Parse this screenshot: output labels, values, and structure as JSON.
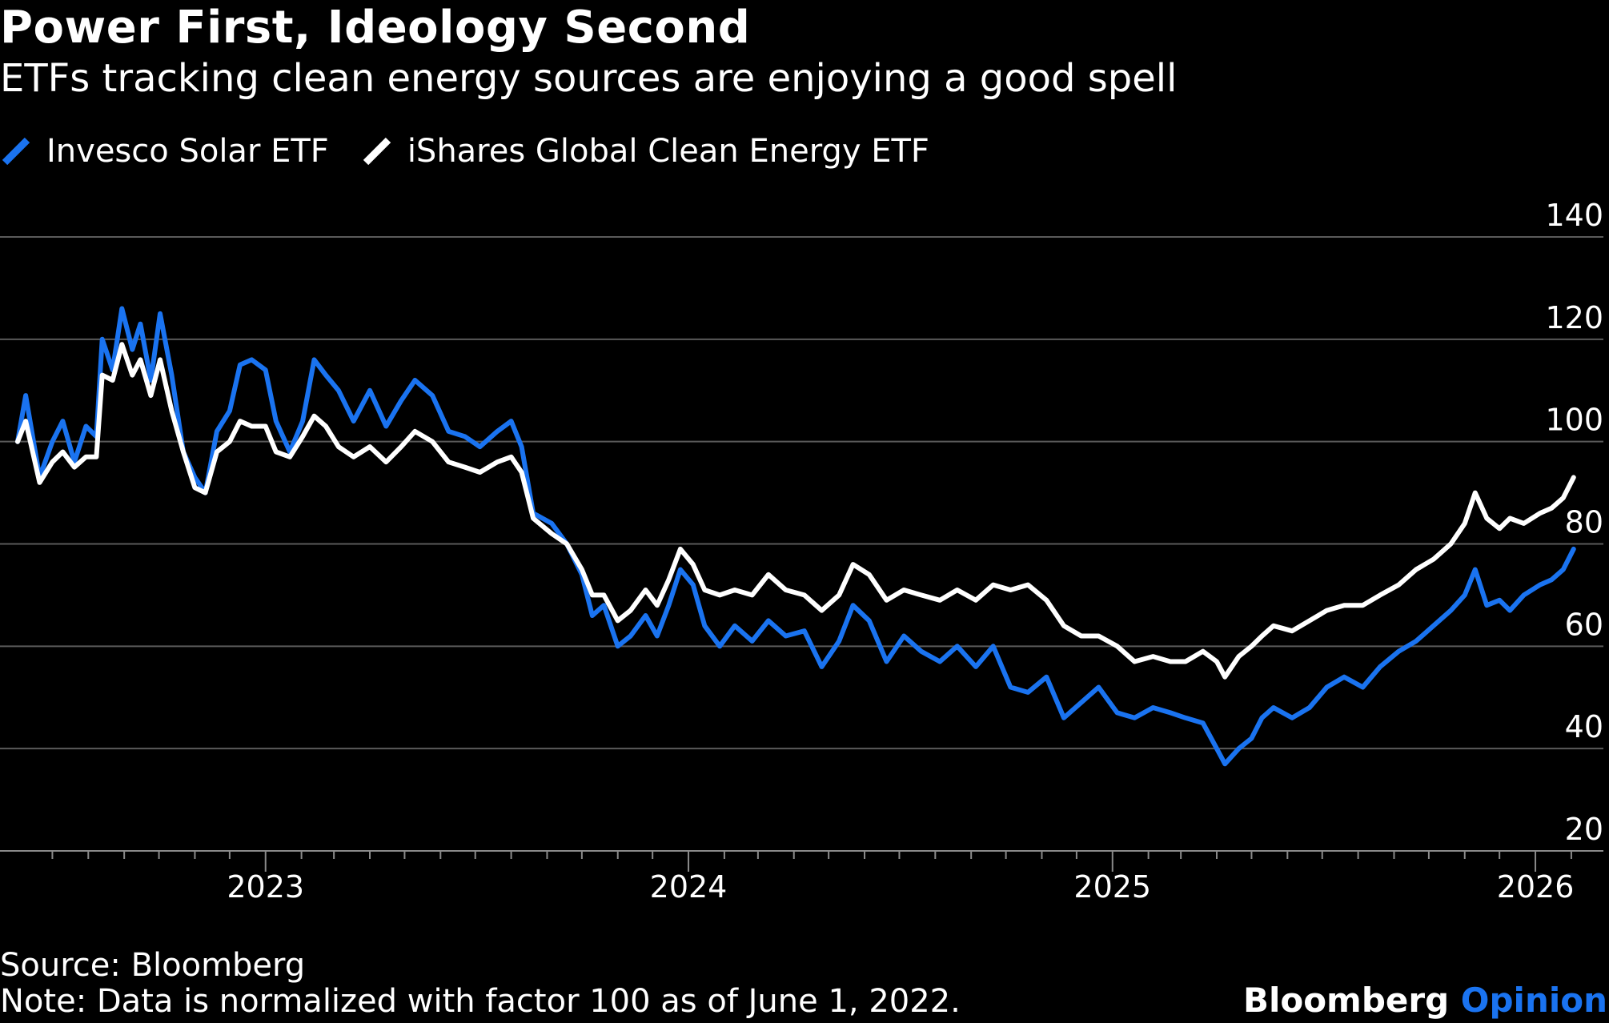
{
  "header": {
    "title": "Power First, Ideology Second",
    "subtitle": "ETFs tracking clean energy sources are enjoying a good spell"
  },
  "footer": {
    "source": "Source: Bloomberg",
    "note": "Note: Data is normalized with factor 100 as of June 1, 2022.",
    "brand_name": "Bloomberg",
    "brand_suffix": "Opinion"
  },
  "colors": {
    "background": "#000000",
    "solar": "#1a73f0",
    "clean_energy": "#ffffff",
    "gridline": "#5a5a5a",
    "brand_accent": "#1a73f0"
  },
  "chart_data": {
    "type": "line",
    "title": "Power First, Ideology Second",
    "subtitle": "ETFs tracking clean energy sources are enjoying a good spell",
    "ylim": [
      20,
      140
    ],
    "yticks": [
      20,
      40,
      60,
      80,
      100,
      120,
      140
    ],
    "y_axis_side": "right",
    "xlim": [
      "2022-06-01",
      "2026-02-28"
    ],
    "xticks": [
      {
        "date": "2023-01-01",
        "label": "2023"
      },
      {
        "date": "2024-01-01",
        "label": "2024"
      },
      {
        "date": "2025-01-01",
        "label": "2025"
      },
      {
        "date": "2026-01-01",
        "label": "2026"
      }
    ],
    "grid": true,
    "legend_position": "top-left",
    "series": [
      {
        "name": "Invesco Solar ETF",
        "color": "#1a73f0",
        "points": [
          [
            "2022-06-01",
            100
          ],
          [
            "2022-06-08",
            109
          ],
          [
            "2022-06-20",
            93
          ],
          [
            "2022-07-01",
            100
          ],
          [
            "2022-07-10",
            104
          ],
          [
            "2022-07-20",
            96
          ],
          [
            "2022-07-30",
            103
          ],
          [
            "2022-08-08",
            101
          ],
          [
            "2022-08-13",
            120
          ],
          [
            "2022-08-22",
            114
          ],
          [
            "2022-08-30",
            126
          ],
          [
            "2022-09-08",
            118
          ],
          [
            "2022-09-15",
            123
          ],
          [
            "2022-09-24",
            112
          ],
          [
            "2022-10-02",
            125
          ],
          [
            "2022-10-12",
            113
          ],
          [
            "2022-10-22",
            98
          ],
          [
            "2022-11-01",
            93
          ],
          [
            "2022-11-10",
            90
          ],
          [
            "2022-11-20",
            102
          ],
          [
            "2022-12-01",
            106
          ],
          [
            "2022-12-10",
            115
          ],
          [
            "2022-12-20",
            116
          ],
          [
            "2023-01-01",
            114
          ],
          [
            "2023-01-10",
            104
          ],
          [
            "2023-01-22",
            98
          ],
          [
            "2023-02-02",
            104
          ],
          [
            "2023-02-12",
            116
          ],
          [
            "2023-02-22",
            113
          ],
          [
            "2023-03-05",
            110
          ],
          [
            "2023-03-18",
            104
          ],
          [
            "2023-04-01",
            110
          ],
          [
            "2023-04-15",
            103
          ],
          [
            "2023-04-28",
            108
          ],
          [
            "2023-05-10",
            112
          ],
          [
            "2023-05-25",
            109
          ],
          [
            "2023-06-08",
            102
          ],
          [
            "2023-06-22",
            101
          ],
          [
            "2023-07-05",
            99
          ],
          [
            "2023-07-20",
            102
          ],
          [
            "2023-08-01",
            104
          ],
          [
            "2023-08-10",
            99
          ],
          [
            "2023-08-20",
            86
          ],
          [
            "2023-09-05",
            84
          ],
          [
            "2023-09-18",
            80
          ],
          [
            "2023-10-01",
            74
          ],
          [
            "2023-10-10",
            66
          ],
          [
            "2023-10-20",
            68
          ],
          [
            "2023-11-01",
            60
          ],
          [
            "2023-11-12",
            62
          ],
          [
            "2023-11-25",
            66
          ],
          [
            "2023-12-05",
            62
          ],
          [
            "2023-12-15",
            68
          ],
          [
            "2023-12-25",
            75
          ],
          [
            "2024-01-05",
            72
          ],
          [
            "2024-01-15",
            64
          ],
          [
            "2024-01-28",
            60
          ],
          [
            "2024-02-10",
            64
          ],
          [
            "2024-02-25",
            61
          ],
          [
            "2024-03-10",
            65
          ],
          [
            "2024-03-25",
            62
          ],
          [
            "2024-04-10",
            63
          ],
          [
            "2024-04-25",
            56
          ],
          [
            "2024-05-10",
            61
          ],
          [
            "2024-05-22",
            68
          ],
          [
            "2024-06-05",
            65
          ],
          [
            "2024-06-20",
            57
          ],
          [
            "2024-07-05",
            62
          ],
          [
            "2024-07-20",
            59
          ],
          [
            "2024-08-05",
            57
          ],
          [
            "2024-08-20",
            60
          ],
          [
            "2024-09-05",
            56
          ],
          [
            "2024-09-20",
            60
          ],
          [
            "2024-10-05",
            52
          ],
          [
            "2024-10-20",
            51
          ],
          [
            "2024-11-05",
            54
          ],
          [
            "2024-11-20",
            46
          ],
          [
            "2024-12-05",
            49
          ],
          [
            "2024-12-20",
            52
          ],
          [
            "2025-01-05",
            47
          ],
          [
            "2025-01-20",
            46
          ],
          [
            "2025-02-05",
            48
          ],
          [
            "2025-02-20",
            47
          ],
          [
            "2025-03-05",
            46
          ],
          [
            "2025-03-20",
            45
          ],
          [
            "2025-04-01",
            40
          ],
          [
            "2025-04-08",
            37
          ],
          [
            "2025-04-20",
            40
          ],
          [
            "2025-05-01",
            42
          ],
          [
            "2025-05-10",
            46
          ],
          [
            "2025-05-20",
            48
          ],
          [
            "2025-06-05",
            46
          ],
          [
            "2025-06-20",
            48
          ],
          [
            "2025-07-05",
            52
          ],
          [
            "2025-07-20",
            54
          ],
          [
            "2025-08-05",
            52
          ],
          [
            "2025-08-20",
            56
          ],
          [
            "2025-09-05",
            59
          ],
          [
            "2025-09-20",
            61
          ],
          [
            "2025-10-05",
            64
          ],
          [
            "2025-10-20",
            67
          ],
          [
            "2025-11-01",
            70
          ],
          [
            "2025-11-10",
            75
          ],
          [
            "2025-11-20",
            68
          ],
          [
            "2025-12-01",
            69
          ],
          [
            "2025-12-10",
            67
          ],
          [
            "2025-12-22",
            70
          ],
          [
            "2026-01-05",
            72
          ],
          [
            "2026-01-15",
            73
          ],
          [
            "2026-01-25",
            75
          ],
          [
            "2026-02-03",
            79
          ]
        ]
      },
      {
        "name": "iShares Global Clean Energy ETF",
        "color": "#ffffff",
        "points": [
          [
            "2022-06-01",
            100
          ],
          [
            "2022-06-08",
            104
          ],
          [
            "2022-06-20",
            92
          ],
          [
            "2022-07-01",
            96
          ],
          [
            "2022-07-10",
            98
          ],
          [
            "2022-07-20",
            95
          ],
          [
            "2022-07-30",
            97
          ],
          [
            "2022-08-08",
            97
          ],
          [
            "2022-08-13",
            113
          ],
          [
            "2022-08-22",
            112
          ],
          [
            "2022-08-30",
            119
          ],
          [
            "2022-09-08",
            113
          ],
          [
            "2022-09-15",
            116
          ],
          [
            "2022-09-24",
            109
          ],
          [
            "2022-10-02",
            116
          ],
          [
            "2022-10-12",
            106
          ],
          [
            "2022-10-22",
            98
          ],
          [
            "2022-11-01",
            91
          ],
          [
            "2022-11-10",
            90
          ],
          [
            "2022-11-20",
            98
          ],
          [
            "2022-12-01",
            100
          ],
          [
            "2022-12-10",
            104
          ],
          [
            "2022-12-20",
            103
          ],
          [
            "2023-01-01",
            103
          ],
          [
            "2023-01-10",
            98
          ],
          [
            "2023-01-22",
            97
          ],
          [
            "2023-02-02",
            101
          ],
          [
            "2023-02-12",
            105
          ],
          [
            "2023-02-22",
            103
          ],
          [
            "2023-03-05",
            99
          ],
          [
            "2023-03-18",
            97
          ],
          [
            "2023-04-01",
            99
          ],
          [
            "2023-04-15",
            96
          ],
          [
            "2023-04-28",
            99
          ],
          [
            "2023-05-10",
            102
          ],
          [
            "2023-05-25",
            100
          ],
          [
            "2023-06-08",
            96
          ],
          [
            "2023-06-22",
            95
          ],
          [
            "2023-07-05",
            94
          ],
          [
            "2023-07-20",
            96
          ],
          [
            "2023-08-01",
            97
          ],
          [
            "2023-08-10",
            94
          ],
          [
            "2023-08-20",
            85
          ],
          [
            "2023-09-05",
            82
          ],
          [
            "2023-09-18",
            80
          ],
          [
            "2023-10-01",
            75
          ],
          [
            "2023-10-10",
            70
          ],
          [
            "2023-10-20",
            70
          ],
          [
            "2023-11-01",
            65
          ],
          [
            "2023-11-12",
            67
          ],
          [
            "2023-11-25",
            71
          ],
          [
            "2023-12-05",
            68
          ],
          [
            "2023-12-15",
            73
          ],
          [
            "2023-12-25",
            79
          ],
          [
            "2024-01-05",
            76
          ],
          [
            "2024-01-15",
            71
          ],
          [
            "2024-01-28",
            70
          ],
          [
            "2024-02-10",
            71
          ],
          [
            "2024-02-25",
            70
          ],
          [
            "2024-03-10",
            74
          ],
          [
            "2024-03-25",
            71
          ],
          [
            "2024-04-10",
            70
          ],
          [
            "2024-04-25",
            67
          ],
          [
            "2024-05-10",
            70
          ],
          [
            "2024-05-22",
            76
          ],
          [
            "2024-06-05",
            74
          ],
          [
            "2024-06-20",
            69
          ],
          [
            "2024-07-05",
            71
          ],
          [
            "2024-07-20",
            70
          ],
          [
            "2024-08-05",
            69
          ],
          [
            "2024-08-20",
            71
          ],
          [
            "2024-09-05",
            69
          ],
          [
            "2024-09-20",
            72
          ],
          [
            "2024-10-05",
            71
          ],
          [
            "2024-10-20",
            72
          ],
          [
            "2024-11-05",
            69
          ],
          [
            "2024-11-20",
            64
          ],
          [
            "2024-12-05",
            62
          ],
          [
            "2024-12-20",
            62
          ],
          [
            "2025-01-05",
            60
          ],
          [
            "2025-01-20",
            57
          ],
          [
            "2025-02-05",
            58
          ],
          [
            "2025-02-20",
            57
          ],
          [
            "2025-03-05",
            57
          ],
          [
            "2025-03-20",
            59
          ],
          [
            "2025-04-01",
            57
          ],
          [
            "2025-04-08",
            54
          ],
          [
            "2025-04-20",
            58
          ],
          [
            "2025-05-01",
            60
          ],
          [
            "2025-05-10",
            62
          ],
          [
            "2025-05-20",
            64
          ],
          [
            "2025-06-05",
            63
          ],
          [
            "2025-06-20",
            65
          ],
          [
            "2025-07-05",
            67
          ],
          [
            "2025-07-20",
            68
          ],
          [
            "2025-08-05",
            68
          ],
          [
            "2025-08-20",
            70
          ],
          [
            "2025-09-05",
            72
          ],
          [
            "2025-09-20",
            75
          ],
          [
            "2025-10-05",
            77
          ],
          [
            "2025-10-20",
            80
          ],
          [
            "2025-11-01",
            84
          ],
          [
            "2025-11-10",
            90
          ],
          [
            "2025-11-20",
            85
          ],
          [
            "2025-12-01",
            83
          ],
          [
            "2025-12-10",
            85
          ],
          [
            "2025-12-22",
            84
          ],
          [
            "2026-01-05",
            86
          ],
          [
            "2026-01-15",
            87
          ],
          [
            "2026-01-25",
            89
          ],
          [
            "2026-02-03",
            93
          ]
        ]
      }
    ]
  }
}
